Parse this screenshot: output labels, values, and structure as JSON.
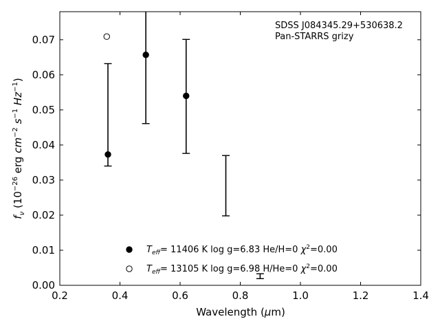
{
  "chart_data": {
    "type": "scatter",
    "annotation": [
      "SDSS J084345.29+530638.2",
      "Pan-STARRS grizy"
    ],
    "xlabel": "Wavelength (μm)",
    "ylabel": "f_ν (10^-26 erg cm^-2 s^-1 Hz^-1)",
    "xlim": [
      0.2,
      1.4
    ],
    "ylim": [
      0.0,
      0.078
    ],
    "xticks": [
      "0.2",
      "0.4",
      "0.6",
      "0.8",
      "1.0",
      "1.2",
      "1.4"
    ],
    "yticks": [
      "0.00",
      "0.01",
      "0.02",
      "0.03",
      "0.04",
      "0.05",
      "0.06",
      "0.07"
    ],
    "observed": [
      {
        "x": 0.36,
        "low": 0.034,
        "high": 0.0632
      },
      {
        "x": 0.486,
        "low": 0.0461,
        "high": 0.0805
      },
      {
        "x": 0.62,
        "low": 0.0376,
        "high": 0.0701
      },
      {
        "x": 0.752,
        "low": 0.0198,
        "high": 0.037
      },
      {
        "x": 0.866,
        "low": 0.0019,
        "high": 0.0033
      }
    ],
    "series": [
      {
        "name": "T_eff= 11406 K  log g=6.83  He/H=0  χ²=0.00",
        "marker": "filled",
        "x": [
          0.36,
          0.486,
          0.62
        ],
        "y": [
          0.0373,
          0.0657,
          0.054
        ]
      },
      {
        "name": "T_eff= 13105 K  log g=6.98  H/He=0  χ²=0.00",
        "marker": "open",
        "x": [
          0.356
        ],
        "y": [
          0.0709
        ]
      }
    ],
    "legend_position": "lower-center"
  }
}
